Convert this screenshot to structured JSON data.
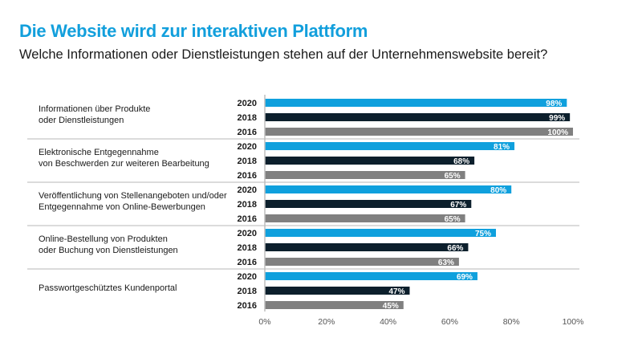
{
  "header": {
    "title": "Die Website wird zur interaktiven Plattform",
    "subtitle": "Welche Informationen oder Dienstleistungen stehen auf der Unternehmenswebsite bereit?"
  },
  "chart_data": {
    "type": "bar",
    "orientation": "horizontal",
    "title": "Die Website wird zur interaktiven Plattform",
    "subtitle": "Welche Informationen oder Dienstleistungen stehen auf der Unternehmenswebsite bereit?",
    "categories": [
      [
        "Informationen über Produkte",
        "oder Dienstleistungen"
      ],
      [
        "Elektronische Entgegennahme",
        "von Beschwerden zur weiteren Bearbeitung"
      ],
      [
        "Veröffentlichung von Stellenangeboten und/oder",
        "Entgegennahme von Online-Bewerbungen"
      ],
      [
        "Online-Bestellung von Produkten",
        "oder Buchung von Dienstleistungen"
      ],
      [
        "Passwortgeschütztes Kundenportal"
      ]
    ],
    "series": [
      {
        "name": "2020",
        "color": "#0fa0dd",
        "values": [
          98,
          81,
          80,
          75,
          69
        ]
      },
      {
        "name": "2018",
        "color": "#0c1f2c",
        "values": [
          99,
          68,
          67,
          66,
          47
        ]
      },
      {
        "name": "2016",
        "color": "#808080",
        "values": [
          100,
          65,
          65,
          63,
          45
        ]
      }
    ],
    "xlim": [
      0,
      100
    ],
    "xticks": [
      "0%",
      "20%",
      "40%",
      "60%",
      "80%",
      "100%"
    ],
    "value_suffix": "%",
    "grid": false,
    "legend": "none"
  }
}
